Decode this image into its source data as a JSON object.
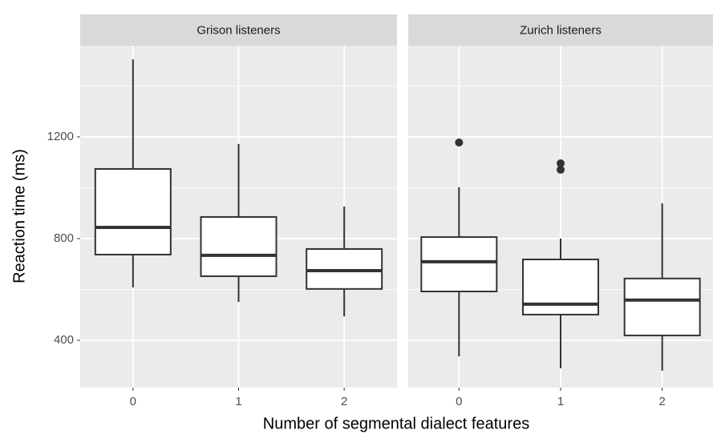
{
  "chart_data": {
    "type": "box",
    "x_label": "Number of segmental dialect features",
    "y_label": "Reaction time (ms)",
    "ylim": [
      214,
      1559
    ],
    "yticks": [
      400,
      800,
      1200
    ],
    "minor_yticks": [
      600,
      1000,
      1400
    ],
    "grid": true,
    "box_color": "#ffffff",
    "line_color": "#333333",
    "panels": [
      {
        "title": "Grison listeners",
        "categories": [
          "0",
          "1",
          "2"
        ],
        "boxes": [
          {
            "min": 608,
            "q1": 737,
            "median": 844,
            "q3": 1074,
            "max": 1505
          },
          {
            "min": 551,
            "q1": 652,
            "median": 734,
            "q3": 885,
            "max": 1172
          },
          {
            "min": 494,
            "q1": 602,
            "median": 674,
            "q3": 759,
            "max": 926
          }
        ]
      },
      {
        "title": "Zurich listeners",
        "categories": [
          "0",
          "1",
          "2"
        ],
        "boxes": [
          {
            "min": 337,
            "q1": 592,
            "median": 709,
            "q3": 806,
            "max": 1002,
            "outliers": [
              1178
            ]
          },
          {
            "min": 290,
            "q1": 501,
            "median": 542,
            "q3": 718,
            "max": 800,
            "outliers": [
              1096,
              1071
            ]
          },
          {
            "min": 280,
            "q1": 419,
            "median": 558,
            "q3": 643,
            "max": 939
          }
        ]
      }
    ]
  }
}
